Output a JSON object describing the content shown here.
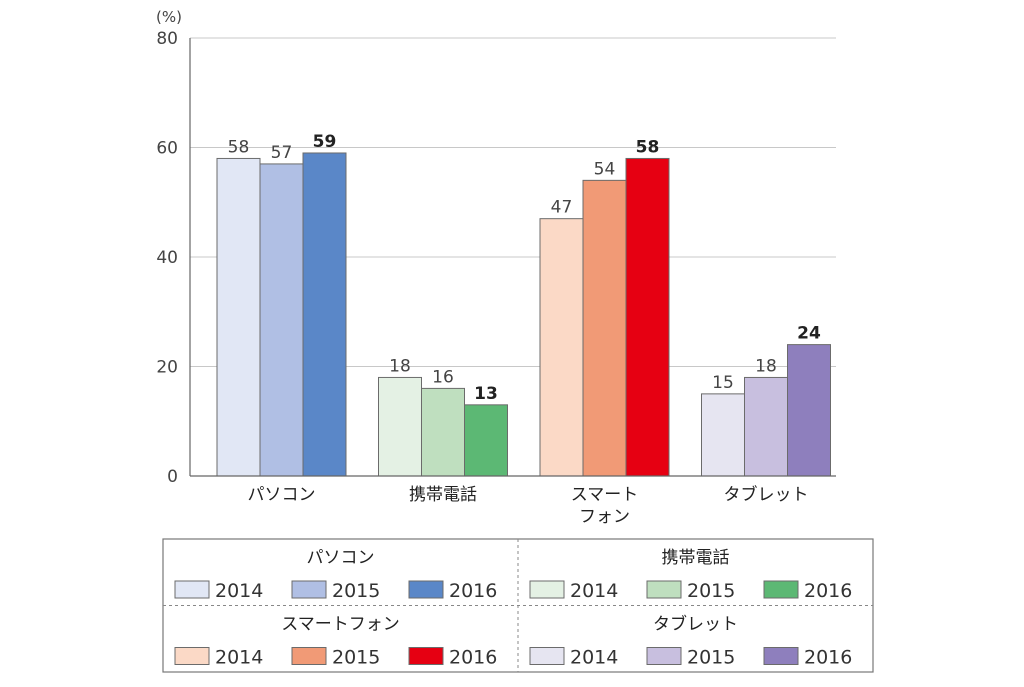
{
  "chart_data": {
    "type": "bar",
    "unit_label": "(%)",
    "ylim": [
      0,
      80
    ],
    "yticks": [
      0,
      20,
      40,
      60,
      80
    ],
    "grid": true,
    "categories": [
      {
        "label_lines": [
          "パソコン"
        ],
        "legend_title": "パソコン",
        "values": [
          58,
          57,
          59
        ],
        "colors": [
          "#e1e7f5",
          "#b0bfe4",
          "#5a87c8"
        ]
      },
      {
        "label_lines": [
          "携帯電話"
        ],
        "legend_title": "携帯電話",
        "values": [
          18,
          16,
          13
        ],
        "colors": [
          "#e4f1e4",
          "#bfdfbf",
          "#5cb874"
        ]
      },
      {
        "label_lines": [
          "スマート",
          "フォン"
        ],
        "legend_title": "スマートフォン",
        "values": [
          47,
          54,
          58
        ],
        "colors": [
          "#fbd9c6",
          "#f19a76",
          "#e60012"
        ]
      },
      {
        "label_lines": [
          "タブレット"
        ],
        "legend_title": "タブレット",
        "values": [
          15,
          18,
          24
        ],
        "colors": [
          "#e6e5f1",
          "#c8bfdf",
          "#8e7fbd"
        ]
      }
    ],
    "years": [
      "2014",
      "2015",
      "2016"
    ],
    "legend_placement": "bottom"
  }
}
